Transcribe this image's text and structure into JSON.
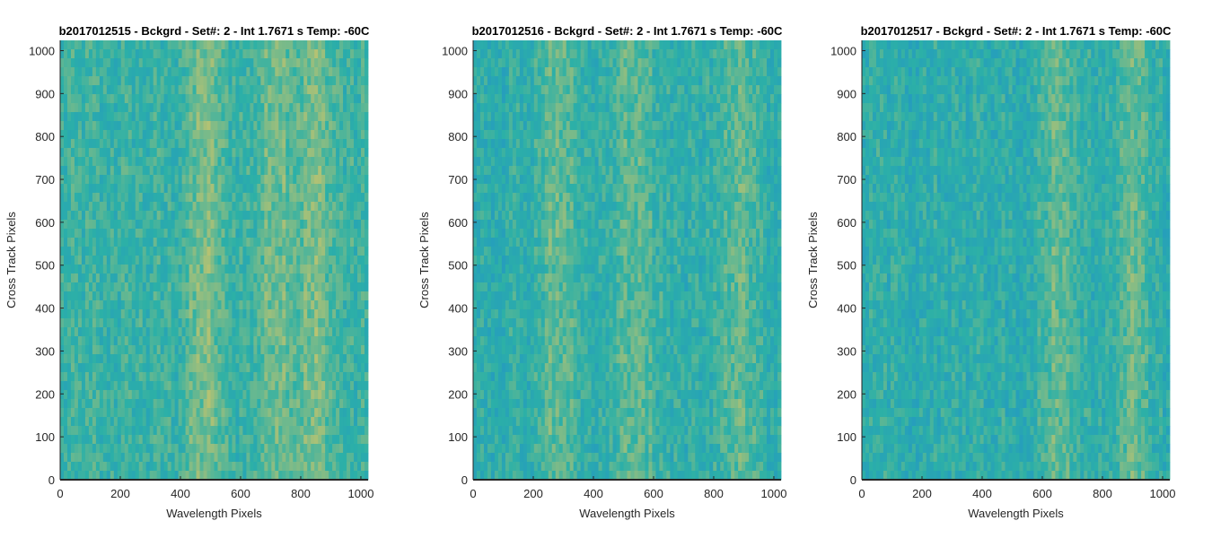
{
  "figure": {
    "background": "#ffffff"
  },
  "colormap": {
    "low": "#1f8bd2",
    "mid": "#2cb0a7",
    "high": "#cbc56a"
  },
  "chart_data": [
    {
      "type": "heatmap",
      "title": "b2017012515 - Bckgrd - Set#: 2 - Int 1.7671 s Temp: -60C",
      "xlabel": "Wavelength Pixels",
      "ylabel": "Cross Track Pixels",
      "xlim": [
        0,
        1024
      ],
      "ylim": [
        0,
        1024
      ],
      "xticks": [
        0,
        200,
        400,
        600,
        800,
        1000
      ],
      "yticks": [
        0,
        100,
        200,
        300,
        400,
        500,
        600,
        700,
        800,
        900,
        1000
      ],
      "bright_columns": [
        480,
        720,
        850
      ],
      "base_level": 0.52
    },
    {
      "type": "heatmap",
      "title": "b2017012516 - Bckgrd - Set#: 2 - Int 1.7671 s Temp: -60C",
      "xlabel": "Wavelength Pixels",
      "ylabel": "Cross Track Pixels",
      "xlim": [
        0,
        1024
      ],
      "ylim": [
        0,
        1024
      ],
      "xticks": [
        0,
        200,
        400,
        600,
        800,
        1000
      ],
      "yticks": [
        0,
        100,
        200,
        300,
        400,
        500,
        600,
        700,
        800,
        900,
        1000
      ],
      "bright_columns": [
        280,
        540,
        880
      ],
      "base_level": 0.47
    },
    {
      "type": "heatmap",
      "title": "b2017012517 - Bckgrd - Set#: 2 - Int 1.7671 s Temp: -60C",
      "xlabel": "Wavelength Pixels",
      "ylabel": "Cross Track Pixels",
      "xlim": [
        0,
        1024
      ],
      "ylim": [
        0,
        1024
      ],
      "xticks": [
        0,
        200,
        400,
        600,
        800,
        1000
      ],
      "yticks": [
        0,
        100,
        200,
        300,
        400,
        500,
        600,
        700,
        800,
        900,
        1000
      ],
      "bright_columns": [
        650,
        900
      ],
      "base_level": 0.45
    }
  ]
}
